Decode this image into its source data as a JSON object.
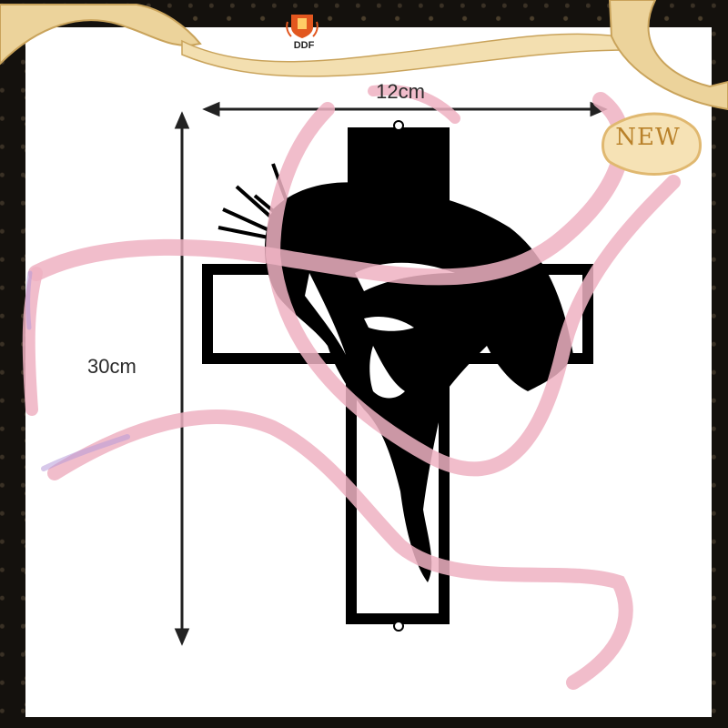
{
  "brand": {
    "logo_text": "DDF",
    "logo_icon": "shield-crest-icon",
    "logo_color": "#e2571f"
  },
  "dimensions": {
    "width_label": "12cm",
    "height_label": "30cm"
  },
  "badge": {
    "text": "NEW",
    "color": "#f2d9a0"
  },
  "product": {
    "name_icon": "jesus-cross-silhouette",
    "color": "#000000"
  },
  "decor": {
    "ribbon_color": "#efb2c2",
    "gold_ribbon_color": "#e9c98a"
  }
}
